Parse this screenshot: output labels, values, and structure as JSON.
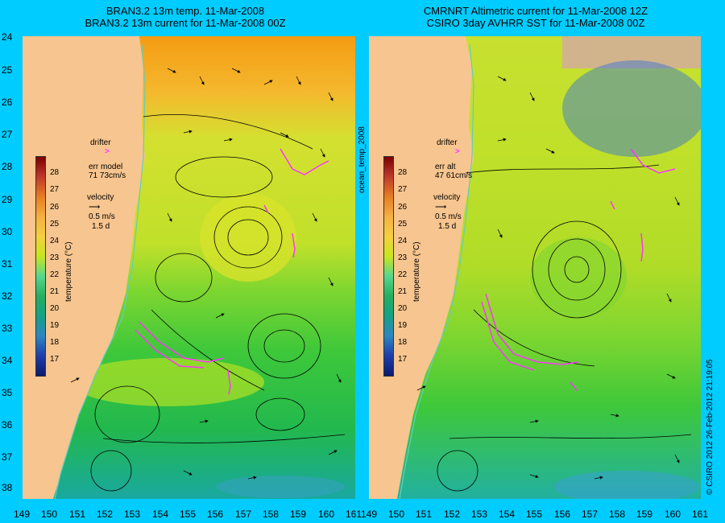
{
  "titles": {
    "left_line1": "BRAN3.2 13m temp. 11-Mar-2008",
    "left_line2": "BRAN3.2 13m current for 11-Mar-2008 00Z",
    "right_line1": "CMRNRT Altimetric current for 11-Mar-2008 12Z",
    "right_line2": "CSIRO 3day AVHRR SST for 11-Mar-2008 00Z"
  },
  "lat_labels": [
    "24",
    "25",
    "26",
    "27",
    "28",
    "29",
    "30",
    "31",
    "32",
    "33",
    "34",
    "35",
    "36",
    "37",
    "38"
  ],
  "lon_labels": [
    "149",
    "150",
    "151",
    "152",
    "153",
    "154",
    "155",
    "156",
    "157",
    "158",
    "159",
    "160",
    "161"
  ],
  "legend_left": {
    "drifter": "drifter",
    "err_label": "err model",
    "err_value": "71 73cm/s",
    "velocity": "velocity",
    "speed": "0.5 m/s",
    "days": "1.5 d"
  },
  "legend_right": {
    "drifter": "drifter",
    "err_label": "err alt",
    "err_value": "47 61cm/s",
    "velocity": "velocity",
    "speed": "0.5 m/s",
    "days": "1.5 d"
  },
  "colorbar": {
    "label": "temperature (°C)",
    "ticks": [
      "28",
      "27",
      "26",
      "25",
      "24",
      "23",
      "22",
      "21",
      "20",
      "19",
      "18",
      "17"
    ]
  },
  "middle_label": "ocean_temp_2008",
  "credit": "© CSIRO 2012   26-Feb-2012 21:19:05",
  "colors": {
    "background": "#00ccff",
    "land": "#f7c58f",
    "drifter": "#ff33ff",
    "warm": "#f5a623",
    "mid": "#c8e61e",
    "cool": "#2ecc40"
  }
}
